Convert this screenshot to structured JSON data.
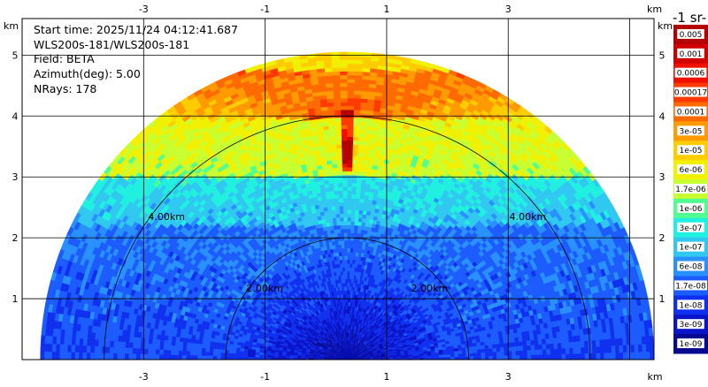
{
  "info": {
    "start_time": "Start time: 2025/11/24 04:12:41.687",
    "instrument": "WLS200s-181/WLS200s-181",
    "field": "Field: BETA",
    "azimuth": "Azimuth(deg): 5.00",
    "nrays": "NRays: 178"
  },
  "colorbar_title": "-1 sr-",
  "chart_data": {
    "type": "heatmap",
    "xlabel": "km",
    "ylabel": "km",
    "xlim": [
      -5,
      5.4
    ],
    "ylim": [
      0,
      5.6
    ],
    "x_ticks": [
      -3,
      -1,
      1,
      3
    ],
    "y_ticks": [
      1,
      2,
      3,
      4,
      5
    ],
    "x_tick_labels": [
      "-3",
      "-1",
      "1",
      "3"
    ],
    "y_tick_labels": [
      "1",
      "2",
      "3",
      "4",
      "5"
    ],
    "range_rings_km": [
      2,
      4
    ],
    "range_ring_labels": [
      "2.00km",
      "4.00km"
    ],
    "max_range_km": 5.05,
    "grid": true,
    "colorbar": {
      "labels": [
        "0.005",
        "0.001",
        "0.0006",
        "0.00017",
        "0.0001",
        "3e-05",
        "1e-05",
        "6e-06",
        "1.7e-06",
        "1e-06",
        "3e-07",
        "1e-07",
        "6e-08",
        "1.7e-08",
        "1e-08",
        "3e-09",
        "1e-09"
      ],
      "colors": [
        "#b30000",
        "#d00000",
        "#f01000",
        "#ff3a00",
        "#ff6a00",
        "#ff9a00",
        "#ffcc00",
        "#f0f000",
        "#c8ff30",
        "#50ff90",
        "#20f0e0",
        "#30c8f0",
        "#2890ff",
        "#1c5cff",
        "#1030f0",
        "#0a14c8",
        "#060890"
      ]
    }
  }
}
